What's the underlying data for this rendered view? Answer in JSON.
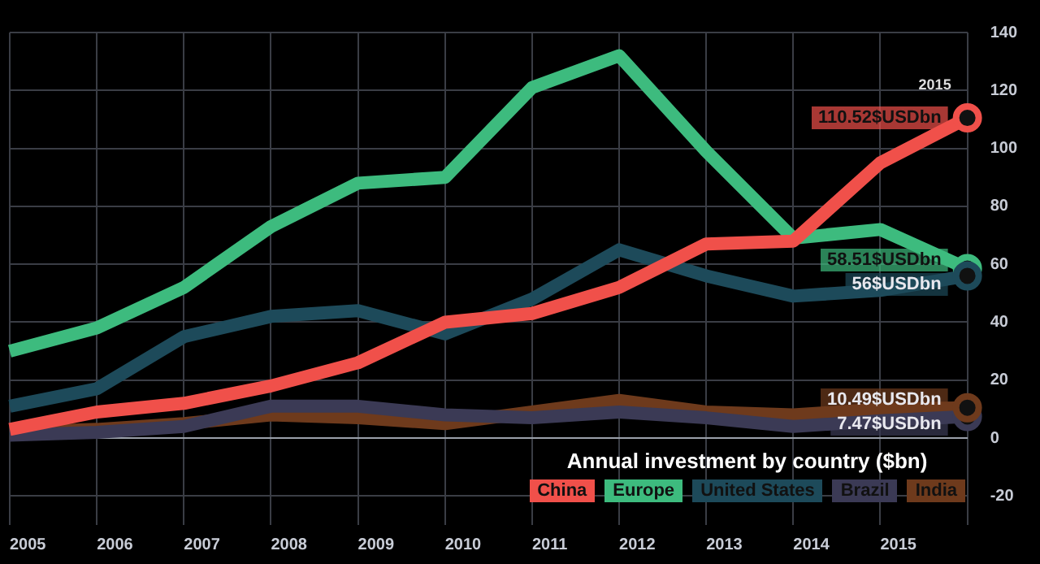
{
  "chart_data": {
    "type": "line",
    "title": "Annual investment by country ($bn)",
    "categories": [
      "2005",
      "2006",
      "2007",
      "2008",
      "2009",
      "2010",
      "2011",
      "2012",
      "2013",
      "2014",
      "2015",
      null
    ],
    "series": [
      {
        "name": "China",
        "color": "#f0504a",
        "values": [
          3,
          9,
          12,
          18,
          26,
          40,
          43,
          52,
          67,
          68,
          95,
          110.52
        ],
        "value_labels": [
          null,
          null,
          null,
          null,
          null,
          null,
          null,
          null,
          null,
          null,
          null,
          "110.52$USDbn"
        ]
      },
      {
        "name": "Europe",
        "color": "#3dbb7e",
        "values": [
          30,
          38,
          52,
          73,
          88,
          90,
          121,
          132,
          99,
          69,
          72,
          58.51
        ],
        "value_labels": [
          null,
          null,
          null,
          null,
          null,
          null,
          null,
          null,
          null,
          null,
          null,
          "58.51$USDbn"
        ]
      },
      {
        "name": "United States",
        "color": "#1d4a5a",
        "values": [
          11,
          17,
          35,
          42,
          44,
          36,
          48,
          65,
          56,
          49,
          51,
          56
        ],
        "value_labels": [
          null,
          null,
          null,
          null,
          null,
          null,
          null,
          null,
          null,
          null,
          null,
          "56$USDbn"
        ]
      },
      {
        "name": "Brazil",
        "color": "#3b3a55",
        "values": [
          1,
          2,
          4,
          11,
          11,
          8,
          7,
          9,
          7,
          4,
          6,
          7.47
        ],
        "value_labels": [
          null,
          null,
          null,
          null,
          null,
          null,
          null,
          null,
          null,
          null,
          null,
          "7.47$USDbn"
        ]
      },
      {
        "name": "India",
        "color": "#6e3a1c",
        "values": [
          2,
          3,
          5,
          8,
          7,
          5,
          9,
          13,
          9,
          8,
          10,
          10.49
        ],
        "value_labels": [
          null,
          null,
          null,
          null,
          null,
          null,
          null,
          null,
          null,
          null,
          null,
          "10.49$USDbn"
        ]
      }
    ],
    "ylim": [
      -30,
      140
    ],
    "yticks": [
      -20,
      0,
      20,
      40,
      60,
      80,
      100,
      120,
      140
    ],
    "grid": true,
    "legend": "bottom right",
    "annotations": [
      "2015"
    ]
  }
}
